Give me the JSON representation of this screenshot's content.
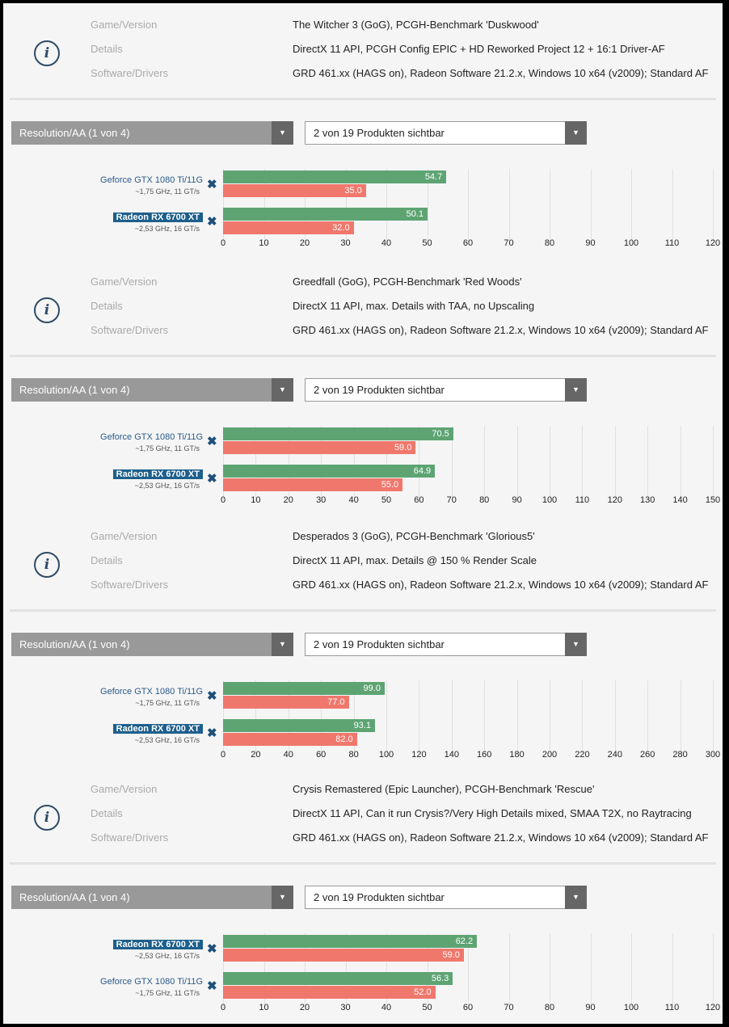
{
  "labels": {
    "game": "Game/Version",
    "details": "Details",
    "software": "Software/Drivers",
    "resolution": "Resolution/AA (1 von 4)",
    "products": "2 von 19 Produkten sichtbar",
    "info_icon": "i",
    "remove": "✖",
    "arrow": "▼"
  },
  "colors": {
    "avg": "#5ea473",
    "min": "#f0776c",
    "highlight": "#1d5f8c"
  },
  "benchmarks": [
    {
      "game": "The Witcher 3 (GoG), PCGH-Benchmark 'Duskwood'",
      "details": "DirectX 11 API, PCGH Config EPIC + HD Reworked Project 12 + 16:1 Driver-AF",
      "software": "GRD 461.xx (HAGS on), Radeon Software 21.2.x, Windows 10 x64 (v2009); Standard AF",
      "chart_data": {
        "type": "bar",
        "xlim": [
          0,
          120
        ],
        "ticks": [
          0,
          10,
          20,
          30,
          40,
          50,
          60,
          70,
          80,
          90,
          100,
          110,
          120
        ],
        "series": [
          "avg fps",
          "min fps"
        ],
        "products": [
          {
            "name": "Geforce GTX 1080 Ti/11G",
            "spec": "~1,75 GHz, 11 GT/s",
            "highlight": false,
            "avg": 54.7,
            "min": 35.0,
            "avg_label": "54.7",
            "min_label": "35.0"
          },
          {
            "name": "Radeon RX 6700 XT",
            "spec": "~2,53 GHz, 16 GT/s",
            "highlight": true,
            "avg": 50.1,
            "min": 32.0,
            "avg_label": "50.1",
            "min_label": "32.0"
          }
        ]
      }
    },
    {
      "game": "Greedfall (GoG), PCGH-Benchmark 'Red Woods'",
      "details": "DirectX 11 API, max. Details with TAA, no Upscaling",
      "software": "GRD 461.xx (HAGS on), Radeon Software 21.2.x, Windows 10 x64 (v2009); Standard AF",
      "chart_data": {
        "type": "bar",
        "xlim": [
          0,
          150
        ],
        "ticks": [
          0,
          10,
          20,
          30,
          40,
          50,
          60,
          70,
          80,
          90,
          100,
          110,
          120,
          130,
          140,
          150
        ],
        "series": [
          "avg fps",
          "min fps"
        ],
        "products": [
          {
            "name": "Geforce GTX 1080 Ti/11G",
            "spec": "~1,75 GHz, 11 GT/s",
            "highlight": false,
            "avg": 70.5,
            "min": 59.0,
            "avg_label": "70.5",
            "min_label": "59.0"
          },
          {
            "name": "Radeon RX 6700 XT",
            "spec": "~2,53 GHz, 16 GT/s",
            "highlight": true,
            "avg": 64.9,
            "min": 55.0,
            "avg_label": "64.9",
            "min_label": "55.0"
          }
        ]
      }
    },
    {
      "game": "Desperados 3 (GoG), PCGH-Benchmark 'Glorious5'",
      "details": "DirectX 11 API, max. Details @ 150 % Render Scale",
      "software": "GRD 461.xx (HAGS on), Radeon Software 21.2.x, Windows 10 x64 (v2009); Standard AF",
      "chart_data": {
        "type": "bar",
        "xlim": [
          0,
          300
        ],
        "ticks": [
          0,
          20,
          40,
          60,
          80,
          100,
          120,
          140,
          160,
          180,
          200,
          220,
          240,
          260,
          280,
          300
        ],
        "series": [
          "avg fps",
          "min fps"
        ],
        "products": [
          {
            "name": "Geforce GTX 1080 Ti/11G",
            "spec": "~1,75 GHz, 11 GT/s",
            "highlight": false,
            "avg": 99.0,
            "min": 77.0,
            "avg_label": "99.0",
            "min_label": "77.0"
          },
          {
            "name": "Radeon RX 6700 XT",
            "spec": "~2,53 GHz, 16 GT/s",
            "highlight": true,
            "avg": 93.1,
            "min": 82.0,
            "avg_label": "93.1",
            "min_label": "82.0"
          }
        ]
      }
    },
    {
      "game": "Crysis Remastered (Epic Launcher), PCGH-Benchmark 'Rescue'",
      "details": "DirectX 11 API, Can it run Crysis?/Very High Details mixed, SMAA T2X, no Raytracing",
      "software": "GRD 461.xx (HAGS on), Radeon Software 21.2.x, Windows 10 x64 (v2009); Standard AF",
      "chart_data": {
        "type": "bar",
        "xlim": [
          0,
          120
        ],
        "ticks": [
          0,
          10,
          20,
          30,
          40,
          50,
          60,
          70,
          80,
          90,
          100,
          110,
          120
        ],
        "series": [
          "avg fps",
          "min fps"
        ],
        "products": [
          {
            "name": "Radeon RX 6700 XT",
            "spec": "~2,53 GHz, 16 GT/s",
            "highlight": true,
            "avg": 62.2,
            "min": 59.0,
            "avg_label": "62.2",
            "min_label": "59.0"
          },
          {
            "name": "Geforce GTX 1080 Ti/11G",
            "spec": "~1,75 GHz, 11 GT/s",
            "highlight": false,
            "avg": 56.3,
            "min": 52.0,
            "avg_label": "56.3",
            "min_label": "52.0"
          }
        ]
      }
    }
  ]
}
